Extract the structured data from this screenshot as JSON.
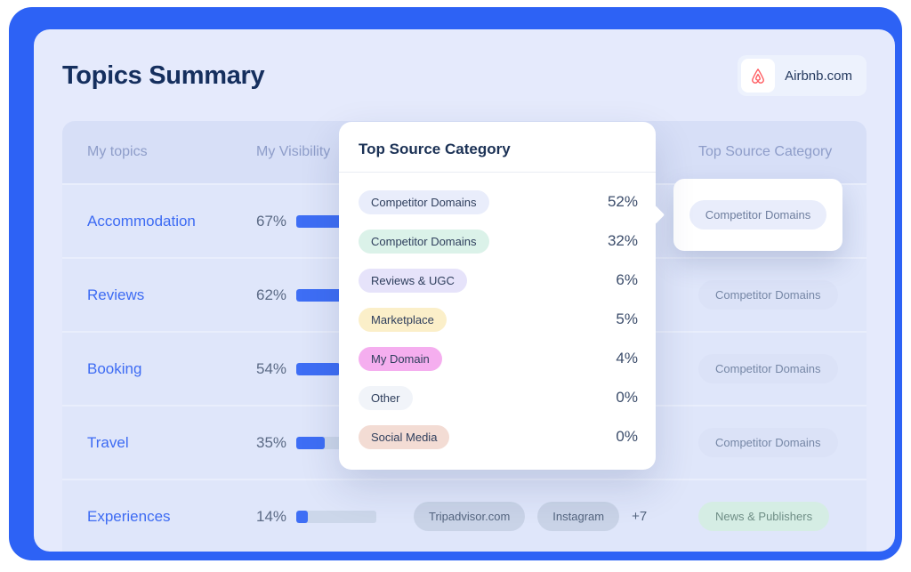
{
  "header": {
    "title": "Topics Summary",
    "domain_badge": {
      "label": "Airbnb.com",
      "icon": "airbnb-logo",
      "icon_color": "#FF5A5F"
    }
  },
  "table": {
    "columns": {
      "topics": "My topics",
      "visibility": "My Visibility",
      "category": "Top Source Category"
    },
    "rows": [
      {
        "topic": "Accommodation",
        "visibility": 67,
        "visibility_label": "67%"
      },
      {
        "topic": "Reviews",
        "visibility": 62,
        "visibility_label": "62%",
        "category": "Competitor Domains"
      },
      {
        "topic": "Booking",
        "visibility": 54,
        "visibility_label": "54%",
        "category": "Competitor Domains"
      },
      {
        "topic": "Travel",
        "visibility": 35,
        "visibility_label": "35%",
        "category": "Competitor Domains"
      },
      {
        "topic": "Experiences",
        "visibility": 14,
        "visibility_label": "14%",
        "sources": [
          "Tripadvisor.com",
          "Instagram"
        ],
        "more": "+7",
        "category": "News & Publishers"
      }
    ]
  },
  "popover": {
    "title": "Top Source Category",
    "rows": [
      {
        "label": "Competitor Domains",
        "value": "52%",
        "color": "#E9EDFB"
      },
      {
        "label": "Competitor Domains",
        "value": "32%",
        "color": "#DBF2E9"
      },
      {
        "label": "Reviews & UGC",
        "value": "6%",
        "color": "#E6E3FA"
      },
      {
        "label": "Marketplace",
        "value": "5%",
        "color": "#FBEFC9"
      },
      {
        "label": "My Domain",
        "value": "4%",
        "color": "#F5AEEF"
      },
      {
        "label": "Other",
        "value": "0%",
        "color": "#F1F4F9"
      },
      {
        "label": "Social Media",
        "value": "0%",
        "color": "#F3DCD4"
      }
    ]
  },
  "tooltip": {
    "label": "Competitor Domains"
  },
  "colors": {
    "accent_blue": "#2D62F5",
    "bar_fill": "#3E6EF5",
    "bar_track": "#CCD7EA"
  }
}
